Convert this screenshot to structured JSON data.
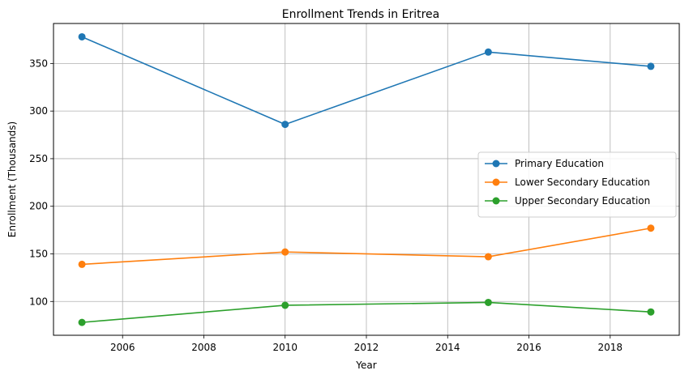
{
  "chart_data": {
    "type": "line",
    "title": "Enrollment Trends in Eritrea",
    "xlabel": "Year",
    "ylabel": "Enrollment (Thousands)",
    "xlim": [
      2004.3,
      2019.7
    ],
    "ylim": [
      64.5,
      392
    ],
    "xticks": [
      2006,
      2008,
      2010,
      2012,
      2014,
      2016,
      2018
    ],
    "yticks": [
      100,
      150,
      200,
      250,
      300,
      350
    ],
    "grid": true,
    "legend_position": "center-right",
    "x": [
      2005,
      2010,
      2015,
      2019
    ],
    "series": [
      {
        "name": "Primary Education",
        "color": "#1f77b4",
        "values": [
          378,
          286,
          362,
          347
        ]
      },
      {
        "name": "Lower Secondary Education",
        "color": "#ff7f0e",
        "values": [
          139,
          152,
          147,
          177
        ]
      },
      {
        "name": "Upper Secondary Education",
        "color": "#2ca02c",
        "values": [
          78,
          96,
          99,
          89
        ]
      }
    ]
  }
}
